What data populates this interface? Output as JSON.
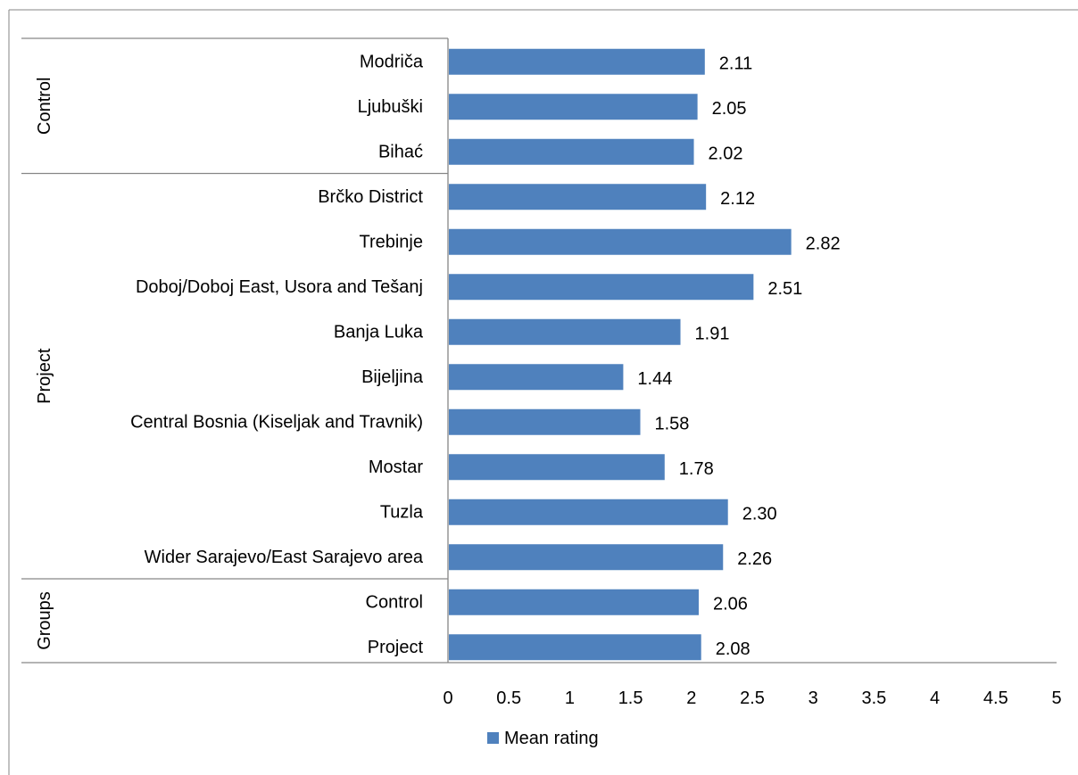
{
  "chart_data": {
    "type": "bar",
    "orientation": "horizontal",
    "title": "",
    "xlabel": "",
    "ylabel": "",
    "xlim": [
      0,
      5
    ],
    "x_ticks": [
      "0",
      "0.5",
      "1",
      "1.5",
      "2",
      "2.5",
      "3",
      "3.5",
      "4",
      "4.5",
      "5"
    ],
    "grid": false,
    "legend_position": "bottom",
    "series": [
      {
        "name": "Mean rating",
        "color": "#4f81bd"
      }
    ],
    "categories": [
      "Modriča",
      "Ljubuški",
      "Bihać",
      "Brčko District",
      "Trebinje",
      "Doboj/Doboj East, Usora and Tešanj",
      "Banja Luka",
      "Bijeljina",
      "Central Bosnia (Kiseljak and Travnik)",
      "Mostar",
      "Tuzla",
      "Wider Sarajevo/East Sarajevo area",
      "Control",
      "Project"
    ],
    "values": [
      2.11,
      2.05,
      2.02,
      2.12,
      2.82,
      2.51,
      1.91,
      1.44,
      1.58,
      1.78,
      2.3,
      2.26,
      2.06,
      2.08
    ],
    "data_labels": [
      "2.11",
      "2.05",
      "2.02",
      "2.12",
      "2.82",
      "2.51",
      "1.91",
      "1.44",
      "1.58",
      "1.78",
      "2.30",
      "2.26",
      "2.06",
      "2.08"
    ],
    "groups": [
      {
        "label": "Control",
        "start": 0,
        "count": 3
      },
      {
        "label": "Project",
        "start": 3,
        "count": 9
      },
      {
        "label": "Groups",
        "start": 12,
        "count": 2
      }
    ]
  }
}
